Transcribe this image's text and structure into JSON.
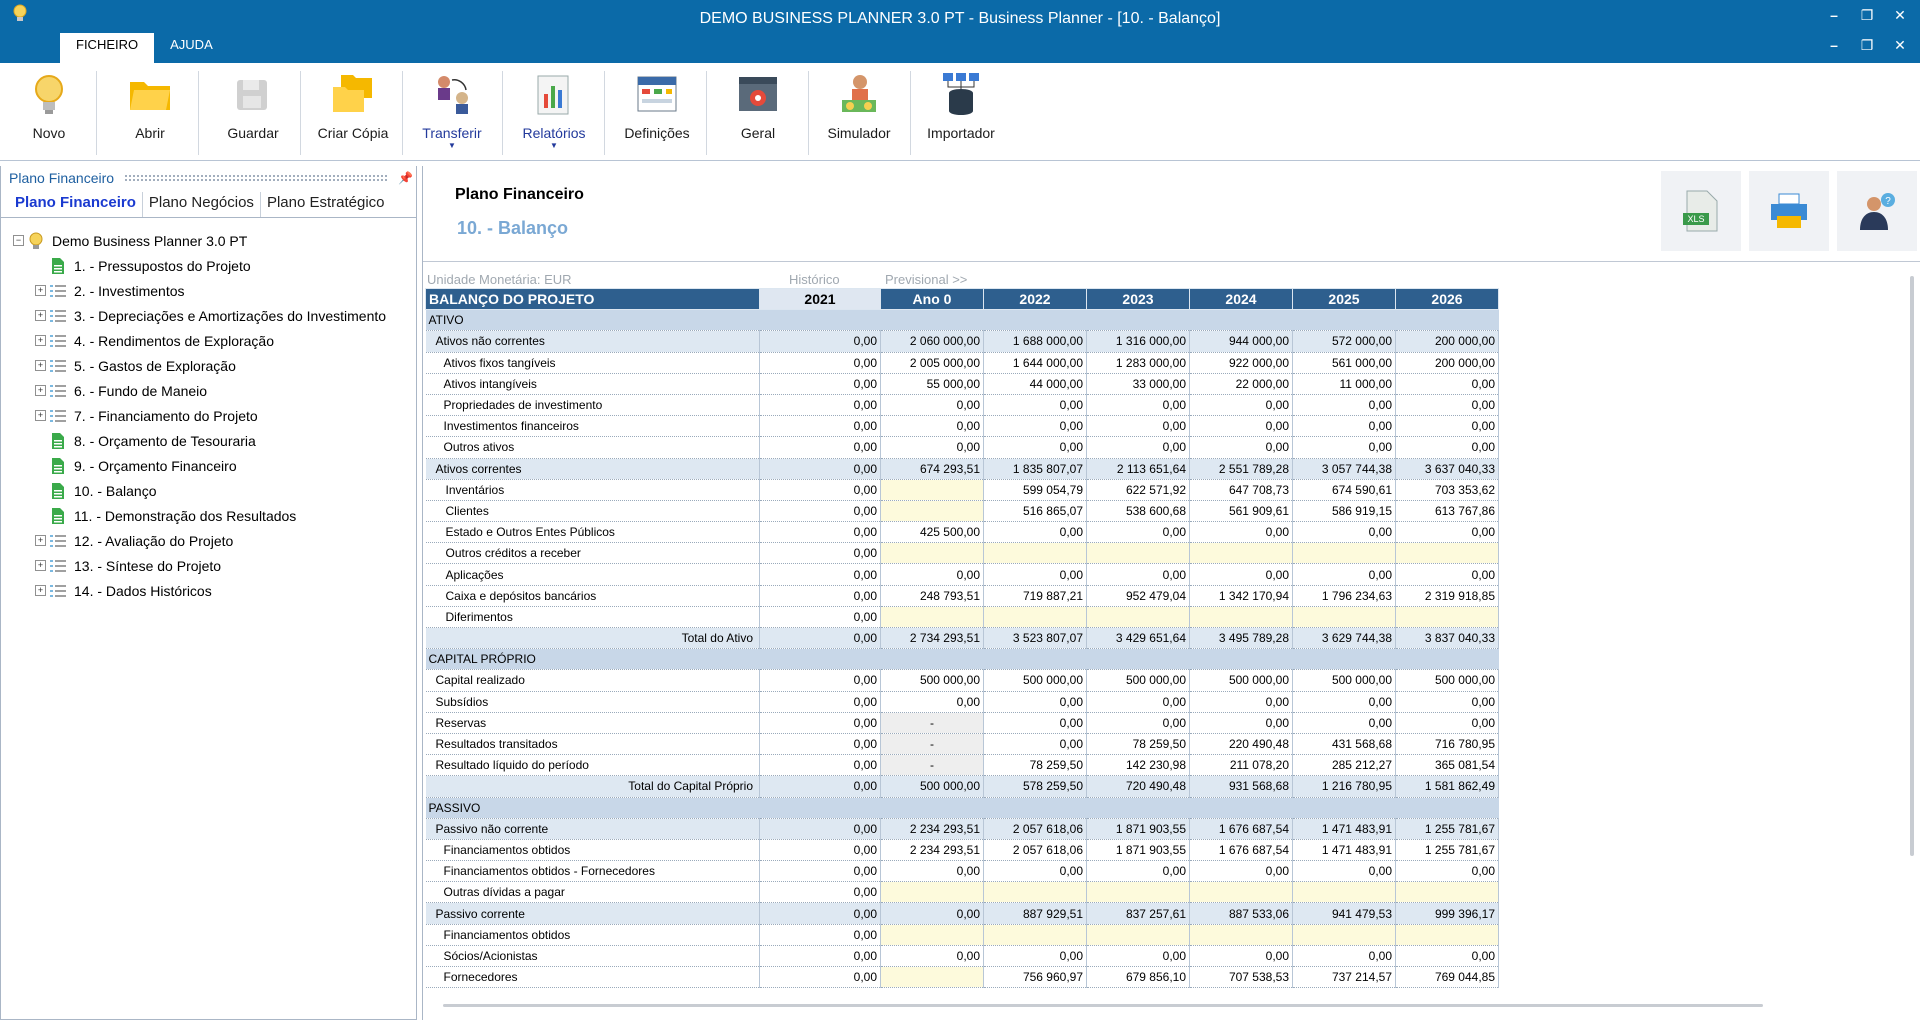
{
  "window": {
    "title": "DEMO BUSINESS PLANNER 3.0 PT - Business Planner - [10. - Balanço]"
  },
  "menu": {
    "tabs": [
      "FICHEIRO",
      "AJUDA"
    ]
  },
  "window_controls": {
    "min": "–",
    "restore": "❐",
    "close": "✕"
  },
  "ribbon": {
    "buttons": [
      {
        "label": "Novo",
        "icon": "bulb-icon"
      },
      {
        "label": "Abrir",
        "icon": "folder-open-icon"
      },
      {
        "label": "Guardar",
        "icon": "save-disabled-icon"
      },
      {
        "label": "Criar Cópia",
        "icon": "copy-folder-icon"
      },
      {
        "label": "Transferir",
        "icon": "transfer-icon",
        "dropdown": "▼"
      },
      {
        "label": "Relatórios",
        "icon": "report-icon",
        "dropdown": "▼"
      },
      {
        "label": "Definições",
        "icon": "settings-table-icon"
      },
      {
        "label": "Geral",
        "icon": "gear-window-icon"
      },
      {
        "label": "Simulador",
        "icon": "simulator-icon"
      },
      {
        "label": "Importador",
        "icon": "database-icon"
      }
    ]
  },
  "left_panel": {
    "header": "Plano Financeiro",
    "pin": "📌",
    "tabs": [
      "Plano Financeiro",
      "Plano Negócios",
      "Plano Estratégico"
    ],
    "tree": {
      "root": "Demo Business Planner 3.0 PT",
      "expander_plus": "+",
      "expander_minus": "−",
      "items": [
        {
          "label": "1. - Pressupostos do Projeto",
          "type": "sheet"
        },
        {
          "label": "2. - Investimentos",
          "type": "folder"
        },
        {
          "label": "3. - Depreciações e Amortizações do Investimento",
          "type": "folder"
        },
        {
          "label": "4. - Rendimentos de Exploração",
          "type": "folder"
        },
        {
          "label": "5. - Gastos de Exploração",
          "type": "folder"
        },
        {
          "label": "6. - Fundo de Maneio",
          "type": "folder"
        },
        {
          "label": "7. - Financiamento do Projeto",
          "type": "folder"
        },
        {
          "label": "8. - Orçamento de Tesouraria",
          "type": "sheet"
        },
        {
          "label": "9. - Orçamento Financeiro",
          "type": "sheet"
        },
        {
          "label": "10. - Balanço",
          "type": "sheet"
        },
        {
          "label": "11. - Demonstração dos Resultados",
          "type": "sheet"
        },
        {
          "label": "12. - Avaliação do Projeto",
          "type": "folder"
        },
        {
          "label": "13. - Síntese do Projeto",
          "type": "folder"
        },
        {
          "label": "14. - Dados Históricos",
          "type": "folder"
        }
      ]
    }
  },
  "main": {
    "title": "Plano Financeiro",
    "subtitle": "10. - Balanço",
    "header_buttons": [
      {
        "label": "XLS",
        "icon": "excel-export-icon"
      },
      {
        "icon": "printer-icon"
      },
      {
        "icon": "help-user-icon"
      }
    ],
    "pre_header": {
      "currency": "Unidade Monetária: EUR",
      "historic": "Histórico",
      "forecast": "Previsional >>"
    },
    "table": {
      "title": "BALANÇO DO PROJETO",
      "columns": [
        "2021",
        "Ano 0",
        "2022",
        "2023",
        "2024",
        "2025",
        "2026"
      ],
      "rows": [
        {
          "kind": "section",
          "label": "ATIVO"
        },
        {
          "kind": "group",
          "indent": 1,
          "label": "Ativos não correntes",
          "values": [
            "0,00",
            "2 060 000,00",
            "1 688 000,00",
            "1 316 000,00",
            "944 000,00",
            "572 000,00",
            "200 000,00"
          ]
        },
        {
          "kind": "item",
          "indent": 2,
          "label": "Ativos fixos tangíveis",
          "values": [
            "0,00",
            "2 005 000,00",
            "1 644 000,00",
            "1 283 000,00",
            "922 000,00",
            "561 000,00",
            "200 000,00"
          ]
        },
        {
          "kind": "item",
          "indent": 2,
          "label": "Ativos intangíveis",
          "values": [
            "0,00",
            "55 000,00",
            "44 000,00",
            "33 000,00",
            "22 000,00",
            "11 000,00",
            "0,00"
          ]
        },
        {
          "kind": "item",
          "indent": 2,
          "label": "Propriedades de investimento",
          "values": [
            "0,00",
            "0,00",
            "0,00",
            "0,00",
            "0,00",
            "0,00",
            "0,00"
          ]
        },
        {
          "kind": "item",
          "indent": 2,
          "label": "Investimentos financeiros",
          "values": [
            "0,00",
            "0,00",
            "0,00",
            "0,00",
            "0,00",
            "0,00",
            "0,00"
          ]
        },
        {
          "kind": "item",
          "indent": 2,
          "label": "Outros ativos",
          "values": [
            "0,00",
            "0,00",
            "0,00",
            "0,00",
            "0,00",
            "0,00",
            "0,00"
          ]
        },
        {
          "kind": "group",
          "indent": 1,
          "label": "Ativos correntes",
          "values": [
            "0,00",
            "674 293,51",
            "1 835 807,07",
            "2 113 651,64",
            "2 551 789,28",
            "3 057 744,38",
            "3 637 040,33"
          ]
        },
        {
          "kind": "item",
          "indent": 3,
          "label": "Inventários",
          "values": [
            "0,00",
            "",
            "599 054,79",
            "622 571,92",
            "647 708,73",
            "674 590,61",
            "703 353,62"
          ],
          "hl": [
            1
          ]
        },
        {
          "kind": "item",
          "indent": 3,
          "label": "Clientes",
          "values": [
            "0,00",
            "",
            "516 865,07",
            "538 600,68",
            "561 909,61",
            "586 919,15",
            "613 767,86"
          ],
          "hl": [
            1
          ]
        },
        {
          "kind": "item",
          "indent": 3,
          "label": "Estado e Outros Entes Públicos",
          "values": [
            "0,00",
            "425 500,00",
            "0,00",
            "0,00",
            "0,00",
            "0,00",
            "0,00"
          ]
        },
        {
          "kind": "item",
          "indent": 3,
          "label": "Outros créditos a receber",
          "values": [
            "0,00",
            "",
            "",
            "",
            "",
            "",
            ""
          ],
          "hl": [
            1,
            2,
            3,
            4,
            5,
            6
          ]
        },
        {
          "kind": "item",
          "indent": 3,
          "label": "Aplicações",
          "values": [
            "0,00",
            "0,00",
            "0,00",
            "0,00",
            "0,00",
            "0,00",
            "0,00"
          ]
        },
        {
          "kind": "item",
          "indent": 3,
          "label": "Caixa e depósitos bancários",
          "values": [
            "0,00",
            "248 793,51",
            "719 887,21",
            "952 479,04",
            "1 342 170,94",
            "1 796 234,63",
            "2 319 918,85"
          ]
        },
        {
          "kind": "item",
          "indent": 3,
          "label": "Diferimentos",
          "values": [
            "0,00",
            "",
            "",
            "",
            "",
            "",
            ""
          ],
          "hl": [
            1,
            2,
            3,
            4,
            5,
            6
          ]
        },
        {
          "kind": "total",
          "label": "Total do Ativo",
          "values": [
            "0,00",
            "2 734 293,51",
            "3 523 807,07",
            "3 429 651,64",
            "3 495 789,28",
            "3 629 744,38",
            "3 837 040,33"
          ]
        },
        {
          "kind": "section",
          "label": "CAPITAL PRÓPRIO"
        },
        {
          "kind": "item",
          "indent": 1,
          "label": "Capital realizado",
          "values": [
            "0,00",
            "500 000,00",
            "500 000,00",
            "500 000,00",
            "500 000,00",
            "500 000,00",
            "500 000,00"
          ]
        },
        {
          "kind": "item",
          "indent": 1,
          "label": "Subsídios",
          "values": [
            "0,00",
            "0,00",
            "0,00",
            "0,00",
            "0,00",
            "0,00",
            "0,00"
          ]
        },
        {
          "kind": "item",
          "indent": 1,
          "label": "Reservas",
          "values": [
            "0,00",
            "-",
            "0,00",
            "0,00",
            "0,00",
            "0,00",
            "0,00"
          ],
          "grey": [
            1
          ]
        },
        {
          "kind": "item",
          "indent": 1,
          "label": "Resultados transitados",
          "values": [
            "0,00",
            "-",
            "0,00",
            "78 259,50",
            "220 490,48",
            "431 568,68",
            "716 780,95"
          ],
          "grey": [
            1
          ]
        },
        {
          "kind": "item",
          "indent": 1,
          "label": "Resultado líquido do período",
          "values": [
            "0,00",
            "-",
            "78 259,50",
            "142 230,98",
            "211 078,20",
            "285 212,27",
            "365 081,54"
          ],
          "grey": [
            1
          ]
        },
        {
          "kind": "total",
          "label": "Total do Capital Próprio",
          "values": [
            "0,00",
            "500 000,00",
            "578 259,50",
            "720 490,48",
            "931 568,68",
            "1 216 780,95",
            "1 581 862,49"
          ]
        },
        {
          "kind": "section",
          "label": "PASSIVO"
        },
        {
          "kind": "group",
          "indent": 1,
          "label": "Passivo não corrente",
          "values": [
            "0,00",
            "2 234 293,51",
            "2 057 618,06",
            "1 871 903,55",
            "1 676 687,54",
            "1 471 483,91",
            "1 255 781,67"
          ]
        },
        {
          "kind": "item",
          "indent": 2,
          "label": "Financiamentos obtidos",
          "values": [
            "0,00",
            "2 234 293,51",
            "2 057 618,06",
            "1 871 903,55",
            "1 676 687,54",
            "1 471 483,91",
            "1 255 781,67"
          ]
        },
        {
          "kind": "item",
          "indent": 2,
          "label": "Financiamentos obtidos - Fornecedores",
          "values": [
            "0,00",
            "0,00",
            "0,00",
            "0,00",
            "0,00",
            "0,00",
            "0,00"
          ]
        },
        {
          "kind": "item",
          "indent": 2,
          "label": "Outras dívidas a pagar",
          "values": [
            "0,00",
            "",
            "",
            "",
            "",
            "",
            ""
          ],
          "hl": [
            1,
            2,
            3,
            4,
            5,
            6
          ]
        },
        {
          "kind": "group",
          "indent": 1,
          "label": "Passivo corrente",
          "values": [
            "0,00",
            "0,00",
            "887 929,51",
            "837 257,61",
            "887 533,06",
            "941 479,53",
            "999 396,17"
          ]
        },
        {
          "kind": "item",
          "indent": 2,
          "label": "Financiamentos obtidos",
          "values": [
            "0,00",
            "",
            "",
            "",
            "",
            "",
            ""
          ],
          "hl": [
            1,
            2,
            3,
            4,
            5,
            6
          ]
        },
        {
          "kind": "item",
          "indent": 2,
          "label": "Sócios/Acionistas",
          "values": [
            "0,00",
            "0,00",
            "0,00",
            "0,00",
            "0,00",
            "0,00",
            "0,00"
          ]
        },
        {
          "kind": "item",
          "indent": 2,
          "label": "Fornecedores",
          "values": [
            "0,00",
            "",
            "756 960,97",
            "679 856,10",
            "707 538,53",
            "737 214,57",
            "769 044,85"
          ],
          "hl": [
            1
          ]
        }
      ]
    }
  }
}
